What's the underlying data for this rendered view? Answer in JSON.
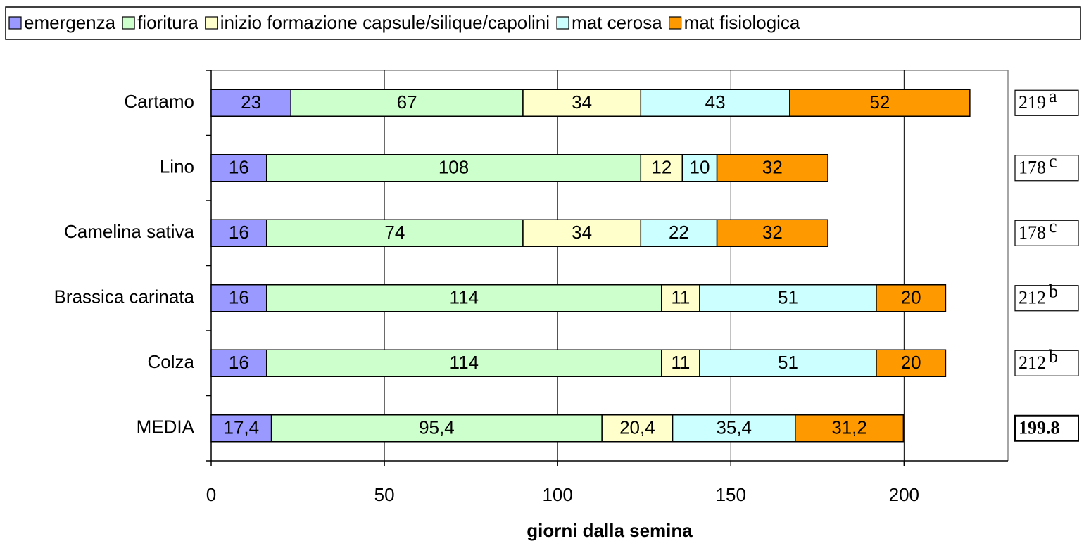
{
  "chart_data": {
    "type": "stacked_barh",
    "categories": [
      "Cartamo",
      "Lino",
      "Camelina sativa",
      "Brassica carinata",
      "Colza",
      "MEDIA"
    ],
    "series": [
      {
        "name": "emergenza",
        "color": "#9999ff",
        "values": [
          23,
          16,
          16,
          16,
          16,
          17.4
        ],
        "value_labels": [
          "23",
          "16",
          "16",
          "16",
          "16",
          "17,4"
        ]
      },
      {
        "name": "fioritura",
        "color": "#ccffcc",
        "values": [
          67,
          108,
          74,
          114,
          114,
          95.4
        ],
        "value_labels": [
          "67",
          "108",
          "74",
          "114",
          "114",
          "95,4"
        ]
      },
      {
        "name": "inizio formazione capsule/silique/capolini",
        "color": "#ffffcc",
        "values": [
          34,
          12,
          34,
          11,
          11,
          20.4
        ],
        "value_labels": [
          "34",
          "12",
          "34",
          "11",
          "11",
          "20,4"
        ]
      },
      {
        "name": "mat cerosa",
        "color": "#ccffff",
        "values": [
          43,
          10,
          22,
          51,
          51,
          35.4
        ],
        "value_labels": [
          "43",
          "10",
          "22",
          "51",
          "51",
          "35,4"
        ]
      },
      {
        "name": "mat fisiologica",
        "color": "#ff9900",
        "values": [
          52,
          32,
          32,
          20,
          20,
          31.2
        ],
        "value_labels": [
          "52",
          "32",
          "32",
          "20",
          "20",
          "31,2"
        ]
      }
    ],
    "totals": [
      "219",
      "178",
      "178",
      "212",
      "212",
      "199.8"
    ],
    "total_letters": [
      "a",
      "c",
      "c",
      "b",
      "b",
      null
    ],
    "xlabel": "giorni dalla semina",
    "xlim": [
      0,
      230
    ],
    "xticks": [
      0,
      50,
      100,
      150,
      200
    ],
    "grid": true,
    "legend": "top"
  }
}
